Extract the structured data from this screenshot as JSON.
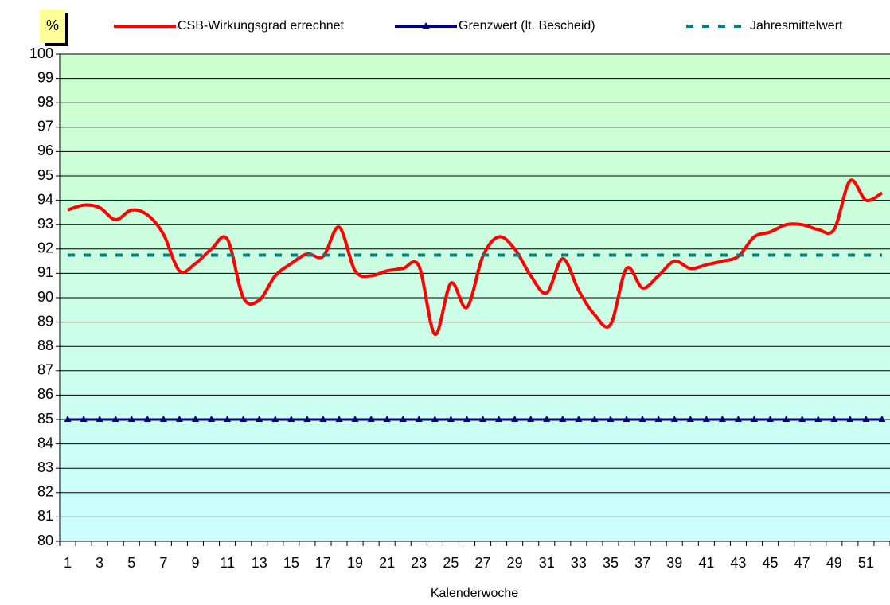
{
  "chart_data": {
    "type": "line",
    "ylabel": "%",
    "xlabel": "Kalenderwoche",
    "categories": [
      1,
      null,
      3,
      null,
      5,
      null,
      7,
      null,
      9,
      null,
      11,
      null,
      13,
      null,
      15,
      null,
      17,
      null,
      19,
      null,
      21,
      null,
      23,
      null,
      25,
      null,
      27,
      null,
      29,
      null,
      31,
      null,
      33,
      null,
      35,
      null,
      37,
      null,
      39,
      null,
      41,
      null,
      43,
      null,
      45,
      null,
      47,
      null,
      49,
      null,
      51,
      null
    ],
    "series": [
      {
        "name": "CSB-Wirkungsgrad errechnet",
        "color": "#ff0000",
        "style": "smooth",
        "values": [
          93.6,
          93.8,
          93.7,
          93.2,
          93.6,
          93.4,
          92.6,
          91.1,
          91.4,
          92.0,
          92.4,
          90.0,
          89.9,
          90.9,
          91.4,
          91.8,
          91.7,
          92.9,
          91.1,
          90.9,
          91.1,
          91.2,
          91.3,
          88.5,
          90.6,
          89.6,
          91.7,
          92.5,
          92.0,
          90.9,
          90.2,
          91.6,
          90.3,
          89.3,
          88.9,
          91.2,
          90.4,
          90.9,
          91.5,
          91.2,
          91.35,
          91.5,
          91.7,
          92.5,
          92.7,
          93.0,
          93.0,
          92.8,
          92.8,
          94.8,
          94.0,
          94.3
        ]
      },
      {
        "name": "Grenzwert (lt. Bescheid)",
        "color": "#000080",
        "style": "markers",
        "values": [
          85,
          85,
          85,
          85,
          85,
          85,
          85,
          85,
          85,
          85,
          85,
          85,
          85,
          85,
          85,
          85,
          85,
          85,
          85,
          85,
          85,
          85,
          85,
          85,
          85,
          85,
          85,
          85,
          85,
          85,
          85,
          85,
          85,
          85,
          85,
          85,
          85,
          85,
          85,
          85,
          85,
          85,
          85,
          85,
          85,
          85,
          85,
          85,
          85,
          85,
          85,
          85
        ]
      },
      {
        "name": "Jahresmittelwert",
        "color": "#008080",
        "style": "dashed",
        "values": [
          91.75,
          91.75,
          91.75,
          91.75,
          91.75,
          91.75,
          91.75,
          91.75,
          91.75,
          91.75,
          91.75,
          91.75,
          91.75,
          91.75,
          91.75,
          91.75,
          91.75,
          91.75,
          91.75,
          91.75,
          91.75,
          91.75,
          91.75,
          91.75,
          91.75,
          91.75,
          91.75,
          91.75,
          91.75,
          91.75,
          91.75,
          91.75,
          91.75,
          91.75,
          91.75,
          91.75,
          91.75,
          91.75,
          91.75,
          91.75,
          91.75,
          91.75,
          91.75,
          91.75,
          91.75,
          91.75,
          91.75,
          91.75,
          91.75,
          91.75,
          91.75,
          91.75
        ]
      }
    ],
    "ylim": [
      80,
      100
    ],
    "yticks": [
      80,
      81,
      82,
      83,
      84,
      85,
      86,
      87,
      88,
      89,
      90,
      91,
      92,
      93,
      94,
      95,
      96,
      97,
      98,
      99,
      100
    ],
    "grid": true,
    "legend": "top"
  }
}
